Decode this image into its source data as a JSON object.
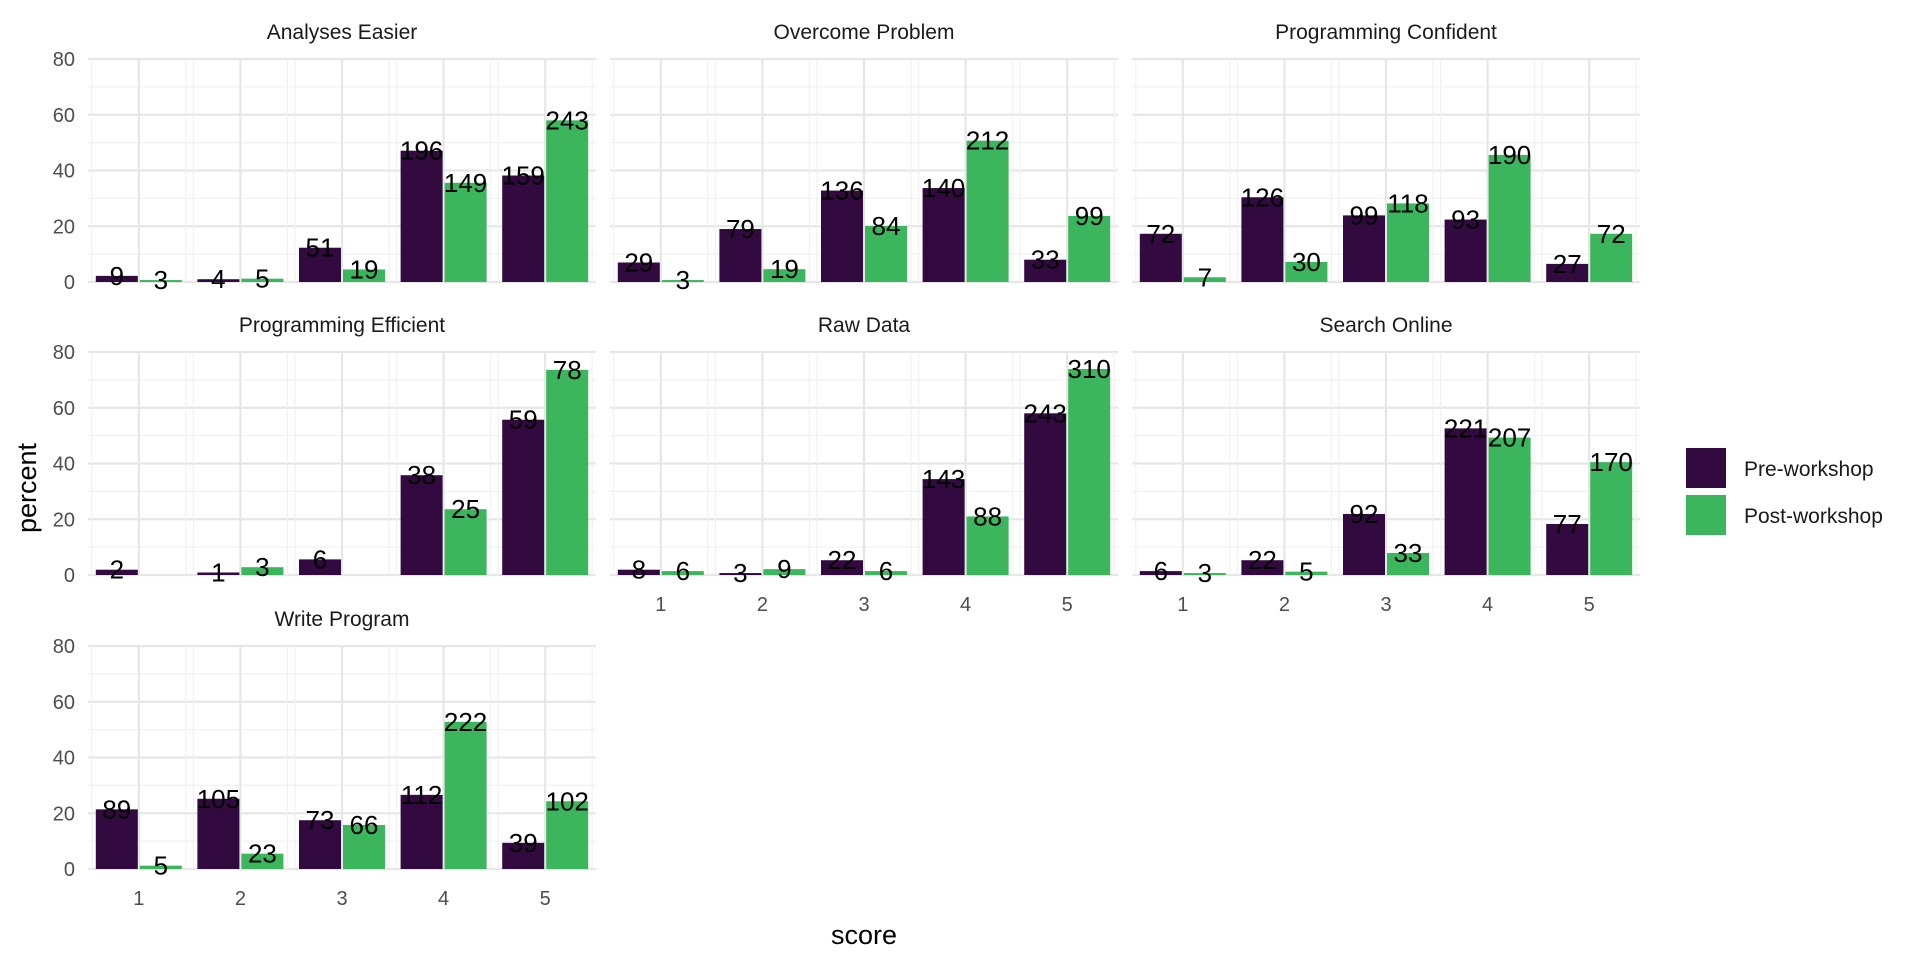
{
  "chart_data": {
    "type": "bar",
    "xlabel": "score",
    "ylabel": "percent",
    "ylim": [
      0,
      80
    ],
    "y_ticks": [
      "0",
      "20",
      "40",
      "60",
      "80"
    ],
    "categories": [
      "1",
      "2",
      "3",
      "4",
      "5"
    ],
    "grid": true,
    "legend_position": "right",
    "series": [
      {
        "name": "Pre-workshop",
        "color": "#330a3f"
      },
      {
        "name": "Post-workshop",
        "color": "#3cb65c"
      }
    ],
    "panels": [
      {
        "title": "Analyses Easier",
        "pre": {
          "percent": [
            2.2,
            1.0,
            12.3,
            47.1,
            38.2
          ],
          "count": [
            "9",
            "4",
            "51",
            "196",
            "159"
          ]
        },
        "post": {
          "percent": [
            0.7,
            1.2,
            4.5,
            35.6,
            58.0
          ],
          "count": [
            "3",
            "5",
            "19",
            "149",
            "243"
          ]
        }
      },
      {
        "title": "Overcome Problem",
        "pre": {
          "percent": [
            7.0,
            19.0,
            32.8,
            33.7,
            8.0
          ],
          "count": [
            "29",
            "79",
            "136",
            "140",
            "33"
          ]
        },
        "post": {
          "percent": [
            0.7,
            4.6,
            20.1,
            50.7,
            23.7
          ],
          "count": [
            "3",
            "19",
            "84",
            "212",
            "99"
          ]
        }
      },
      {
        "title": "Programming Confident",
        "pre": {
          "percent": [
            17.3,
            30.4,
            23.9,
            22.4,
            6.5
          ],
          "count": [
            "72",
            "126",
            "99",
            "93",
            "27"
          ]
        },
        "post": {
          "percent": [
            1.7,
            7.2,
            28.2,
            45.6,
            17.3
          ],
          "count": [
            "7",
            "30",
            "118",
            "190",
            "72"
          ]
        }
      },
      {
        "title": "Programming Efficient",
        "pre": {
          "percent": [
            1.9,
            0.9,
            5.6,
            35.8,
            55.7
          ],
          "count": [
            "2",
            "1",
            "6",
            "38",
            "59"
          ]
        },
        "post": {
          "percent": [
            0.0,
            2.8,
            0.0,
            23.6,
            73.6
          ],
          "count": [
            "",
            "3",
            "",
            "25",
            "78"
          ]
        }
      },
      {
        "title": "Raw Data",
        "pre": {
          "percent": [
            1.9,
            0.7,
            5.3,
            34.4,
            58.0
          ],
          "count": [
            "8",
            "3",
            "22",
            "143",
            "243"
          ]
        },
        "post": {
          "percent": [
            1.4,
            2.1,
            1.4,
            21.0,
            73.9
          ],
          "count": [
            "6",
            "9",
            "6",
            "88",
            "310"
          ]
        }
      },
      {
        "title": "Search Online",
        "pre": {
          "percent": [
            1.4,
            5.3,
            21.9,
            52.6,
            18.3
          ],
          "count": [
            "6",
            "22",
            "92",
            "221",
            "77"
          ]
        },
        "post": {
          "percent": [
            0.7,
            1.2,
            7.9,
            49.3,
            40.5
          ],
          "count": [
            "3",
            "5",
            "33",
            "207",
            "170"
          ]
        }
      },
      {
        "title": "Write Program",
        "pre": {
          "percent": [
            21.4,
            25.2,
            17.5,
            26.6,
            9.4
          ],
          "count": [
            "89",
            "105",
            "73",
            "112",
            "39"
          ]
        },
        "post": {
          "percent": [
            1.2,
            5.5,
            15.8,
            52.8,
            24.3
          ],
          "count": [
            "5",
            "23",
            "66",
            "222",
            "102"
          ]
        }
      }
    ]
  }
}
